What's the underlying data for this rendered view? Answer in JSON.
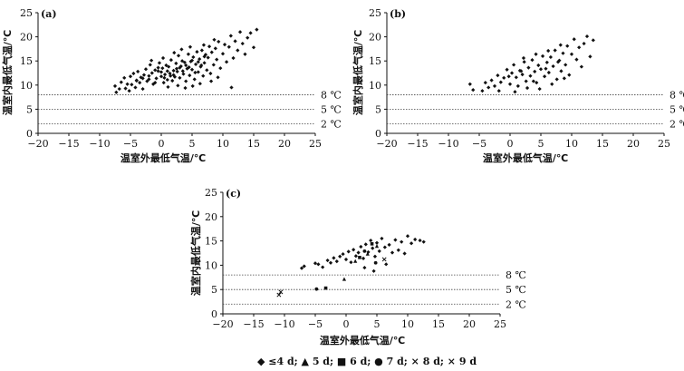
{
  "chart_data": [
    {
      "type": "scatter",
      "panel_label": "(a)",
      "xlabel": "温室外最低气温/℃",
      "ylabel": "温室内最低气温/℃",
      "xlim": [
        -20,
        25
      ],
      "ylim": [
        0,
        25
      ],
      "xticks": [
        "−20",
        "−15",
        "−10",
        "−5",
        "0",
        "5",
        "10",
        "15",
        "20",
        "25"
      ],
      "yticks": [
        "0",
        "5",
        "10",
        "15",
        "20",
        "25"
      ],
      "reference_lines": [
        {
          "y": 8,
          "label": "8 ℃"
        },
        {
          "y": 5,
          "label": "5 ℃"
        },
        {
          "y": 2,
          "label": "2 ℃"
        }
      ],
      "series": [
        {
          "marker": "diamond",
          "points": [
            [
              -7.5,
              9.8
            ],
            [
              -7.3,
              8.5
            ],
            [
              -6.8,
              9.2
            ],
            [
              -6.5,
              10.6
            ],
            [
              -6,
              11.5
            ],
            [
              -5.8,
              9.3
            ],
            [
              -5.5,
              10.2
            ],
            [
              -5.2,
              8.8
            ],
            [
              -5,
              11.8
            ],
            [
              -4.8,
              10.1
            ],
            [
              -4.5,
              12.4
            ],
            [
              -4.2,
              9.5
            ],
            [
              -4,
              11
            ],
            [
              -3.8,
              12.8
            ],
            [
              -3.5,
              10.5
            ],
            [
              -3.3,
              11.6
            ],
            [
              -3,
              9.2
            ],
            [
              -2.8,
              12.1
            ],
            [
              -2.5,
              13.3
            ],
            [
              -2.3,
              10.8
            ],
            [
              -2,
              11.9
            ],
            [
              -1.8,
              14.2
            ],
            [
              -1.5,
              12.5
            ],
            [
              -1.3,
              10.2
            ],
            [
              -1,
              13.1
            ],
            [
              -0.8,
              11.4
            ],
            [
              -0.5,
              12.9
            ],
            [
              -0.3,
              14.6
            ],
            [
              0,
              11.8
            ],
            [
              0.2,
              13.5
            ],
            [
              0.4,
              10.5
            ],
            [
              0.6,
              12.2
            ],
            [
              0.8,
              14.1
            ],
            [
              1,
              11.1
            ],
            [
              1.2,
              13.8
            ],
            [
              1.4,
              12.4
            ],
            [
              1.6,
              15.2
            ],
            [
              1.8,
              10.9
            ],
            [
              2,
              13
            ],
            [
              2.2,
              11.7
            ],
            [
              2.4,
              14.5
            ],
            [
              2.6,
              12.8
            ],
            [
              2.8,
              16.1
            ],
            [
              3,
              11.5
            ],
            [
              3.2,
              13.9
            ],
            [
              3.4,
              15
            ],
            [
              3.6,
              12.3
            ],
            [
              3.8,
              14.7
            ],
            [
              4,
              10.8
            ],
            [
              4.2,
              13.4
            ],
            [
              4.4,
              16.4
            ],
            [
              4.6,
              12
            ],
            [
              4.8,
              14.9
            ],
            [
              5,
              13.2
            ],
            [
              5.2,
              15.8
            ],
            [
              5.4,
              11.2
            ],
            [
              5.6,
              14.3
            ],
            [
              5.8,
              16.9
            ],
            [
              6,
              12.7
            ],
            [
              6.2,
              15.4
            ],
            [
              6.4,
              13.8
            ],
            [
              6.6,
              17.2
            ],
            [
              6.8,
              11.9
            ],
            [
              7,
              14.6
            ],
            [
              7.2,
              16.3
            ],
            [
              7.4,
              13.1
            ],
            [
              7.6,
              15.7
            ],
            [
              7.8,
              18
            ],
            [
              8,
              12.4
            ],
            [
              8.2,
              16.8
            ],
            [
              8.5,
              14.2
            ],
            [
              8.8,
              17.6
            ],
            [
              9,
              15.3
            ],
            [
              9.3,
              19
            ],
            [
              9.6,
              13.5
            ],
            [
              10,
              16.5
            ],
            [
              10.3,
              18.4
            ],
            [
              10.6,
              14.8
            ],
            [
              11,
              17.9
            ],
            [
              11.3,
              20.2
            ],
            [
              11.7,
              15.6
            ],
            [
              12,
              19.1
            ],
            [
              12.4,
              17.2
            ],
            [
              12.8,
              21
            ],
            [
              13.2,
              18.6
            ],
            [
              13.6,
              16.4
            ],
            [
              14,
              19.8
            ],
            [
              14.5,
              20.8
            ],
            [
              15,
              17.8
            ],
            [
              15.5,
              21.5
            ],
            [
              -1,
              10.5
            ],
            [
              0,
              12.7
            ],
            [
              1,
              12.9
            ],
            [
              2,
              12.1
            ],
            [
              3,
              13.6
            ],
            [
              4,
              14.1
            ],
            [
              5,
              15.1
            ],
            [
              6,
              14.8
            ],
            [
              7,
              15.9
            ],
            [
              -2,
              11.2
            ],
            [
              -3,
              11.4
            ],
            [
              -4,
              10.9
            ],
            [
              0.5,
              11.5
            ],
            [
              1.5,
              11.9
            ],
            [
              2.5,
              13.4
            ],
            [
              3.5,
              12.9
            ],
            [
              4.5,
              13.7
            ],
            [
              5.5,
              12.6
            ],
            [
              6.5,
              14.1
            ],
            [
              -0.5,
              13.6
            ],
            [
              1.1,
              9.6
            ],
            [
              2.7,
              9.9
            ],
            [
              3.9,
              9.4
            ],
            [
              5.1,
              9.8
            ],
            [
              6.3,
              10.3
            ],
            [
              8.1,
              10.8
            ],
            [
              9.2,
              11.6
            ],
            [
              11.4,
              9.5
            ],
            [
              -1.6,
              15.1
            ],
            [
              0.3,
              15.6
            ],
            [
              2.1,
              16.7
            ],
            [
              3.3,
              17.4
            ],
            [
              4.7,
              17.9
            ],
            [
              6.9,
              18.3
            ],
            [
              8.6,
              19.4
            ]
          ]
        }
      ]
    },
    {
      "type": "scatter",
      "panel_label": "(b)",
      "xlabel": "温室外最低气温/℃",
      "ylabel": "温室内最低气温/℃",
      "xlim": [
        -20,
        25
      ],
      "ylim": [
        0,
        25
      ],
      "xticks": [
        "−20",
        "−15",
        "−10",
        "−5",
        "0",
        "5",
        "10",
        "15",
        "20",
        "25"
      ],
      "yticks": [
        "0",
        "5",
        "10",
        "15",
        "20",
        "25"
      ],
      "reference_lines": [
        {
          "y": 8,
          "label": "8 ℃"
        },
        {
          "y": 5,
          "label": "5 ℃"
        },
        {
          "y": 2,
          "label": "2 ℃"
        }
      ],
      "series": [
        {
          "marker": "diamond",
          "points": [
            [
              -6.5,
              10.2
            ],
            [
              -6,
              9
            ],
            [
              -4.5,
              8.8
            ],
            [
              -4,
              10.5
            ],
            [
              -3.5,
              9.5
            ],
            [
              -3,
              11
            ],
            [
              -2.5,
              9.8
            ],
            [
              -2,
              12
            ],
            [
              -1.5,
              10.6
            ],
            [
              -1,
              11.5
            ],
            [
              -0.5,
              13.2
            ],
            [
              0,
              10.2
            ],
            [
              0.3,
              12.5
            ],
            [
              0.6,
              14.2
            ],
            [
              1,
              11.6
            ],
            [
              1.3,
              9.8
            ],
            [
              1.6,
              13
            ],
            [
              2,
              12.2
            ],
            [
              2.3,
              14.8
            ],
            [
              2.6,
              10.8
            ],
            [
              3,
              13.6
            ],
            [
              3.3,
              11.9
            ],
            [
              3.6,
              15.2
            ],
            [
              4,
              12.8
            ],
            [
              4.3,
              10.5
            ],
            [
              4.6,
              14.1
            ],
            [
              5,
              13.3
            ],
            [
              5.3,
              16
            ],
            [
              5.6,
              11.8
            ],
            [
              6,
              14.7
            ],
            [
              6.3,
              12.6
            ],
            [
              6.6,
              15.8
            ],
            [
              7,
              13.9
            ],
            [
              7.3,
              17.2
            ],
            [
              7.6,
              11.2
            ],
            [
              8,
              15.1
            ],
            [
              8.3,
              12.9
            ],
            [
              8.6,
              16.6
            ],
            [
              9,
              14.2
            ],
            [
              9.3,
              18.1
            ],
            [
              9.6,
              12.1
            ],
            [
              10,
              16.4
            ],
            [
              10.4,
              19.5
            ],
            [
              10.8,
              15.3
            ],
            [
              11.2,
              17.8
            ],
            [
              11.6,
              13.8
            ],
            [
              12,
              18.6
            ],
            [
              12.5,
              20.1
            ],
            [
              13,
              15.9
            ],
            [
              13.5,
              19.3
            ],
            [
              -1.8,
              8.8
            ],
            [
              0.8,
              8.6
            ],
            [
              2.8,
              9.4
            ],
            [
              4.8,
              9.2
            ],
            [
              6.8,
              10.2
            ],
            [
              8.8,
              11.4
            ],
            [
              3.8,
              10.8
            ],
            [
              1.8,
              12.9
            ],
            [
              5.8,
              13.4
            ],
            [
              7.8,
              14.8
            ],
            [
              -0.2,
              11.8
            ],
            [
              2.2,
              15.6
            ],
            [
              4.2,
              16.4
            ],
            [
              6.2,
              17.1
            ],
            [
              8.2,
              18.3
            ]
          ]
        }
      ]
    },
    {
      "type": "scatter",
      "panel_label": "(c)",
      "xlabel": "温室外最低气温/℃",
      "ylabel": "温室内最低气温/℃",
      "xlim": [
        -20,
        25
      ],
      "ylim": [
        0,
        25
      ],
      "xticks": [
        "−20",
        "−15",
        "−10",
        "−5",
        "0",
        "5",
        "10",
        "15",
        "20",
        "25"
      ],
      "yticks": [
        "0",
        "5",
        "10",
        "15",
        "20",
        "25"
      ],
      "reference_lines": [
        {
          "y": 8,
          "label": "8 ℃"
        },
        {
          "y": 5,
          "label": "5 ℃"
        },
        {
          "y": 2,
          "label": "2 ℃"
        }
      ],
      "series": [
        {
          "name": "≤4 d",
          "marker": "diamond",
          "points": [
            [
              -7.2,
              9.4
            ],
            [
              -6.8,
              9.8
            ],
            [
              -5,
              10.4
            ],
            [
              -4.5,
              10.2
            ],
            [
              -3.8,
              9.6
            ],
            [
              -3,
              11
            ],
            [
              -2.5,
              10.5
            ],
            [
              -2,
              11.5
            ],
            [
              -1.5,
              10.8
            ],
            [
              -1,
              11.8
            ],
            [
              -0.5,
              12.3
            ],
            [
              0,
              11.2
            ],
            [
              0.4,
              12.8
            ],
            [
              0.8,
              10.6
            ],
            [
              1.2,
              13.2
            ],
            [
              1.6,
              11.9
            ],
            [
              2,
              12.6
            ],
            [
              2.4,
              13.8
            ],
            [
              2.8,
              11.4
            ],
            [
              3.2,
              14.3
            ],
            [
              3.6,
              12.7
            ],
            [
              4,
              15.1
            ],
            [
              4.3,
              13.5
            ],
            [
              4.7,
              11.8
            ],
            [
              5,
              14.6
            ],
            [
              5.4,
              12.9
            ],
            [
              5.8,
              15.5
            ],
            [
              6.3,
              13.7
            ],
            [
              7,
              14.2
            ],
            [
              7.5,
              12.6
            ],
            [
              8,
              15.2
            ],
            [
              8.5,
              13.1
            ],
            [
              9,
              14.8
            ],
            [
              9.5,
              12.4
            ],
            [
              10,
              16
            ],
            [
              10.6,
              14.5
            ],
            [
              11.2,
              15.3
            ],
            [
              12,
              15.1
            ],
            [
              12.6,
              14.8
            ],
            [
              3,
              9.5
            ],
            [
              4.5,
              8.8
            ],
            [
              6.5,
              10.2
            ]
          ]
        },
        {
          "name": "5 d",
          "marker": "triangle",
          "points": [
            [
              -0.3,
              7.1
            ],
            [
              1.5,
              10.8
            ],
            [
              3.5,
              12.3
            ],
            [
              5,
              13.9
            ]
          ]
        },
        {
          "name": "6 d",
          "marker": "square",
          "points": [
            [
              -3.3,
              5.3
            ],
            [
              2.2,
              11.6
            ],
            [
              4.2,
              14.4
            ]
          ]
        },
        {
          "name": "7 d",
          "marker": "circle",
          "points": [
            [
              -4.8,
              5.1
            ],
            [
              3,
              12.9
            ],
            [
              4.8,
              10.5
            ]
          ]
        },
        {
          "name": "8 d",
          "marker": "x",
          "points": [
            [
              -10.6,
              4.5
            ],
            [
              6.2,
              11.2
            ]
          ]
        },
        {
          "name": "9 d",
          "marker": "x",
          "points": [
            [
              -10.9,
              3.9
            ]
          ]
        }
      ]
    }
  ],
  "legend_text": "◆ ≤4 d; ▲ 5 d; ■ 6 d; ● 7 d; × 8 d; × 9 d"
}
